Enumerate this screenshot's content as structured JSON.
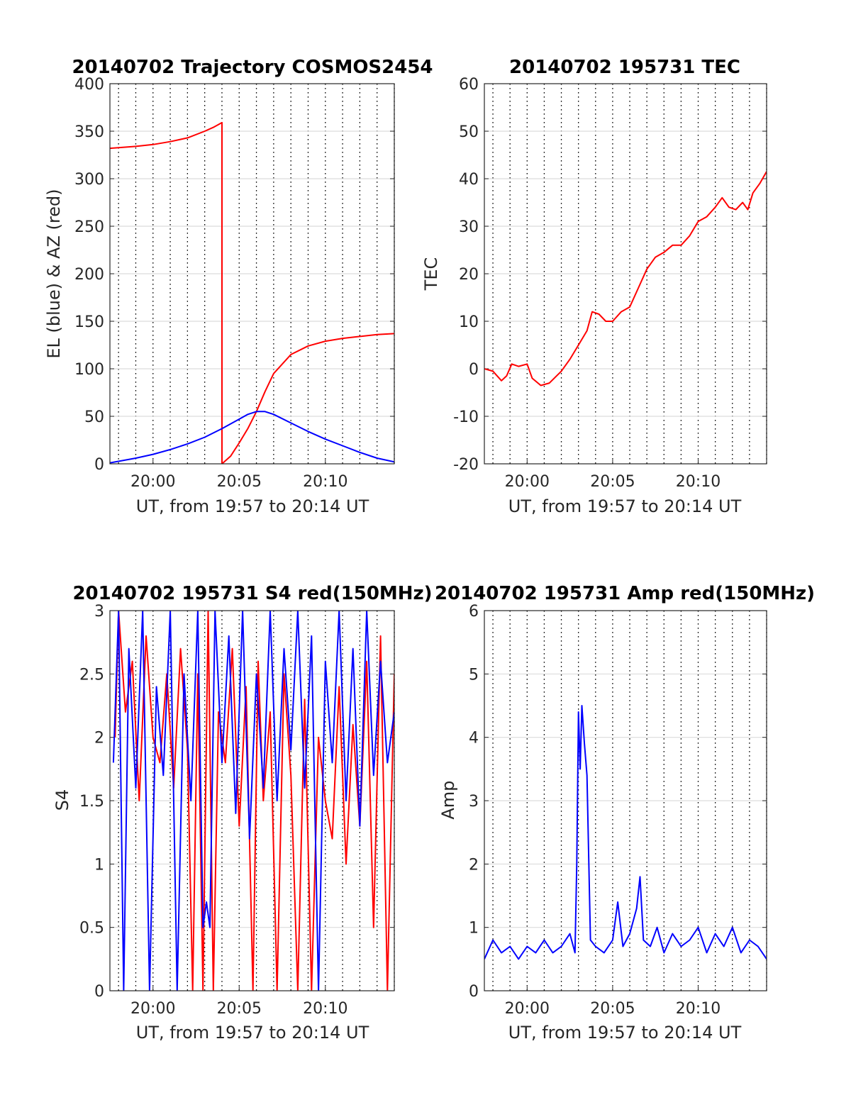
{
  "charts": [
    {
      "title": "20140702 Trajectory COSMOS2454",
      "xlabel": "UT, from 19:57 to 20:14 UT",
      "ylabel": "EL (blue) & AZ (red)",
      "y_ticks": [
        "0",
        "50",
        "100",
        "150",
        "200",
        "250",
        "300",
        "350",
        "400"
      ],
      "x_ticks": [
        "20:00",
        "20:05",
        "20:10"
      ]
    },
    {
      "title": "20140702 195731 TEC",
      "xlabel": "UT, from 19:57 to 20:14 UT",
      "ylabel": "TEC",
      "y_ticks": [
        "-20",
        "-10",
        "0",
        "10",
        "20",
        "30",
        "40",
        "50",
        "60"
      ],
      "x_ticks": [
        "20:00",
        "20:05",
        "20:10"
      ]
    },
    {
      "title": "20140702 195731 S4 red(150MHz)",
      "xlabel": "UT, from 19:57 to 20:14 UT",
      "ylabel": "S4",
      "y_ticks": [
        "0",
        "0.5",
        "1",
        "1.5",
        "2",
        "2.5",
        "3"
      ],
      "x_ticks": [
        "20:00",
        "20:05",
        "20:10"
      ]
    },
    {
      "title": "20140702 195731 Amp red(150MHz)",
      "xlabel": "UT, from 19:57 to 20:14 UT",
      "ylabel": "Amp",
      "y_ticks": [
        "0",
        "1",
        "2",
        "3",
        "4",
        "5",
        "6"
      ],
      "x_ticks": [
        "20:00",
        "20:05",
        "20:10"
      ]
    }
  ],
  "chart_data": [
    {
      "type": "line",
      "title": "20140702 Trajectory COSMOS2454",
      "xlabel": "UT, from 19:57 to 20:14 UT",
      "ylabel": "EL (blue) & AZ (red)",
      "x_unit": "minutes after 20:00 UT",
      "xlim": [
        -2.5,
        14.0
      ],
      "ylim": [
        0,
        400
      ],
      "grid": true,
      "series": [
        {
          "color": "#ff0000",
          "x": [
            -2.5,
            -1,
            0,
            1,
            2,
            3,
            3.5,
            4.0,
            4.0,
            4.5,
            5,
            5.5,
            6,
            6.5,
            7,
            8,
            9,
            10,
            11,
            12,
            13,
            14
          ],
          "y": [
            332,
            334,
            336,
            339,
            343,
            350,
            354,
            359,
            0,
            8,
            22,
            37,
            55,
            76,
            95,
            115,
            124,
            129,
            132,
            134,
            136,
            137
          ]
        },
        {
          "color": "#0000ff",
          "x": [
            -2.5,
            -1,
            0,
            1,
            2,
            3,
            4,
            5,
            5.5,
            6,
            6.5,
            7,
            8,
            9,
            10,
            11,
            12,
            13,
            14
          ],
          "y": [
            1,
            6,
            10,
            15,
            21,
            28,
            37,
            47,
            52,
            55,
            55,
            52,
            43,
            34,
            26,
            19,
            12,
            6,
            2
          ]
        }
      ]
    },
    {
      "type": "line",
      "title": "20140702 195731 TEC",
      "xlabel": "UT, from 19:57 to 20:14 UT",
      "ylabel": "TEC",
      "x_unit": "minutes after 20:00 UT",
      "xlim": [
        -2.5,
        14.0
      ],
      "ylim": [
        -20,
        60
      ],
      "grid": true,
      "series": [
        {
          "color": "#ff0000",
          "x": [
            -2.5,
            -2.0,
            -1.5,
            -1.2,
            -0.9,
            -0.5,
            0,
            0.3,
            0.8,
            1.3,
            2.0,
            2.5,
            3.0,
            3.5,
            3.8,
            4.2,
            4.6,
            5.0,
            5.5,
            6.0,
            6.5,
            7.0,
            7.5,
            8.0,
            8.5,
            9.0,
            9.5,
            10.0,
            10.5,
            11.0,
            11.4,
            11.8,
            12.2,
            12.6,
            12.9,
            13.2,
            13.6,
            14.0
          ],
          "y": [
            0,
            -0.5,
            -2.5,
            -1.5,
            1,
            0.5,
            1,
            -2,
            -3.5,
            -3,
            -0.5,
            2,
            5,
            8,
            12,
            11.5,
            10,
            10,
            12,
            13,
            17,
            21,
            23.5,
            24.5,
            26,
            26,
            28,
            31,
            32,
            34,
            36,
            34,
            33.5,
            35,
            33.5,
            37,
            39,
            41.5
          ]
        }
      ]
    },
    {
      "type": "line",
      "title": "20140702 195731 S4 red(150MHz)",
      "xlabel": "UT, from 19:57 to 20:14 UT",
      "ylabel": "S4",
      "x_unit": "minutes after 20:00 UT",
      "xlim": [
        -2.5,
        14.0
      ],
      "ylim": [
        0,
        3
      ],
      "grid": true,
      "series": [
        {
          "color": "#ff0000",
          "x": [
            -2.2,
            -2.0,
            -1.6,
            -1.2,
            -0.8,
            -0.4,
            0,
            0.4,
            0.8,
            1.2,
            1.6,
            2.0,
            2.3,
            2.6,
            2.9,
            3.2,
            3.5,
            3.8,
            4.2,
            4.6,
            5.0,
            5.4,
            5.8,
            6.1,
            6.4,
            6.8,
            7.2,
            7.6,
            8.0,
            8.4,
            8.8,
            9.2,
            9.6,
            10.0,
            10.4,
            10.8,
            11.2,
            11.6,
            12.0,
            12.4,
            12.8,
            13.2,
            13.6,
            14.0
          ],
          "y": [
            2.0,
            3.0,
            2.2,
            2.6,
            1.5,
            2.8,
            2.0,
            1.8,
            2.5,
            1.6,
            2.7,
            1.9,
            0,
            2.5,
            0,
            3.0,
            0,
            2.2,
            1.8,
            2.7,
            1.3,
            2.4,
            0,
            2.6,
            1.5,
            2.2,
            0,
            2.5,
            1.7,
            0,
            2.3,
            0,
            2.0,
            1.5,
            1.2,
            2.4,
            1.0,
            2.1,
            1.3,
            2.6,
            0.5,
            2.8,
            0,
            2.5
          ]
        },
        {
          "color": "#0000ff",
          "x": [
            -2.3,
            -2.0,
            -1.7,
            -1.4,
            -1.0,
            -0.6,
            -0.2,
            0.2,
            0.6,
            1.0,
            1.4,
            1.8,
            2.2,
            2.6,
            2.9,
            3.1,
            3.3,
            3.6,
            4.0,
            4.4,
            4.8,
            5.2,
            5.6,
            6.0,
            6.4,
            6.8,
            7.2,
            7.6,
            8.0,
            8.4,
            8.8,
            9.2,
            9.6,
            10.0,
            10.4,
            10.8,
            11.2,
            11.6,
            12.0,
            12.4,
            12.8,
            13.2,
            13.6,
            14.0
          ],
          "y": [
            1.8,
            3.0,
            0,
            2.7,
            1.6,
            3.0,
            0,
            2.4,
            1.7,
            3.0,
            0,
            2.5,
            1.5,
            3.0,
            0.5,
            0.7,
            0.5,
            3.0,
            1.8,
            2.8,
            1.4,
            3.0,
            1.2,
            2.5,
            1.6,
            3.0,
            1.5,
            2.7,
            1.9,
            3.0,
            1.6,
            2.8,
            0,
            2.6,
            1.8,
            3.0,
            1.5,
            2.7,
            1.3,
            3.0,
            1.7,
            2.6,
            1.8,
            2.2
          ]
        }
      ]
    },
    {
      "type": "line",
      "title": "20140702 195731 Amp red(150MHz)",
      "xlabel": "UT, from 19:57 to 20:14 UT",
      "ylabel": "Amp",
      "x_unit": "minutes after 20:00 UT",
      "xlim": [
        -2.5,
        14.0
      ],
      "ylim": [
        0,
        6
      ],
      "grid": true,
      "series": [
        {
          "color": "#0000ff",
          "x": [
            -2.5,
            -2.0,
            -1.5,
            -1.0,
            -0.5,
            0,
            0.5,
            1.0,
            1.5,
            2.0,
            2.5,
            2.8,
            2.9,
            3.0,
            3.1,
            3.2,
            3.35,
            3.5,
            3.7,
            4.0,
            4.5,
            5.0,
            5.3,
            5.6,
            6.0,
            6.4,
            6.6,
            6.8,
            7.2,
            7.6,
            8.0,
            8.5,
            9.0,
            9.5,
            10.0,
            10.5,
            11.0,
            11.5,
            12.0,
            12.5,
            13.0,
            13.5,
            14.0
          ],
          "y": [
            0.5,
            0.8,
            0.6,
            0.7,
            0.5,
            0.7,
            0.6,
            0.8,
            0.6,
            0.7,
            0.9,
            0.6,
            2.0,
            4.4,
            3.5,
            4.5,
            3.9,
            3.4,
            0.8,
            0.7,
            0.6,
            0.8,
            1.4,
            0.7,
            0.9,
            1.3,
            1.8,
            0.8,
            0.7,
            1.0,
            0.6,
            0.9,
            0.7,
            0.8,
            1.0,
            0.6,
            0.9,
            0.7,
            1.0,
            0.6,
            0.8,
            0.7,
            0.5
          ]
        }
      ]
    }
  ]
}
